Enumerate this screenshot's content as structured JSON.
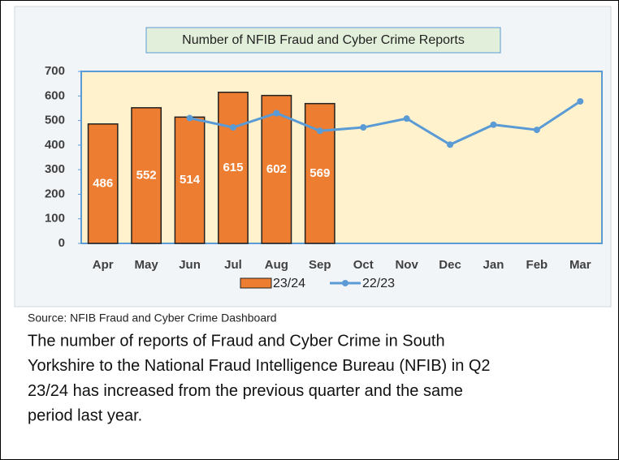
{
  "chart_data": {
    "type": "bar",
    "title": "Number of NFIB Fraud and Cyber Crime Reports",
    "categories": [
      "Apr",
      "May",
      "Jun",
      "Jul",
      "Aug",
      "Sep",
      "Oct",
      "Nov",
      "Dec",
      "Jan",
      "Feb",
      "Mar"
    ],
    "series": [
      {
        "name": "23/24",
        "type": "bar",
        "color": "#ed7d31",
        "data_labels": true,
        "values": [
          486,
          552,
          514,
          615,
          602,
          569,
          null,
          null,
          null,
          null,
          null,
          null
        ]
      },
      {
        "name": "22/23",
        "type": "line",
        "color": "#5b9bd5",
        "values": [
          null,
          null,
          510,
          472,
          530,
          458,
          472,
          508,
          402,
          483,
          462,
          578
        ]
      }
    ],
    "ylim": [
      0,
      700
    ],
    "yticks": [
      0,
      100,
      200,
      300,
      400,
      500,
      600,
      700
    ],
    "legend": "bottom"
  },
  "source": "Source: NFIB Fraud and Cyber Crime Dashboard",
  "paragraph": [
    "The number of reports of Fraud and Cyber Crime in South",
    "Yorkshire to the National Fraud Intelligence Bureau (NFIB) in Q2",
    "23/24 has increased from the previous quarter and the same",
    "period last year."
  ]
}
